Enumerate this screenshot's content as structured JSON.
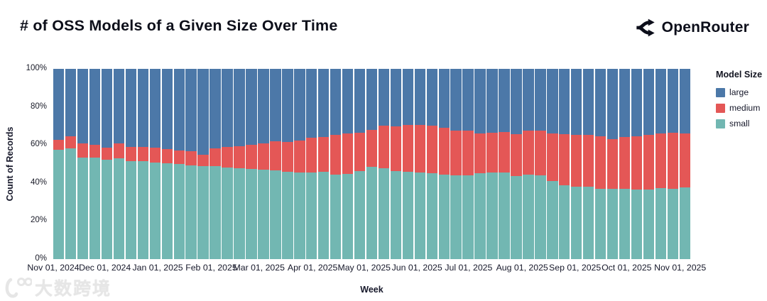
{
  "header": {
    "title": "# of OSS Models of a Given Size Over Time",
    "brand": "OpenRouter"
  },
  "watermark": {
    "text": "大数跨境"
  },
  "chart_data": {
    "type": "bar",
    "variant": "100%-stacked-weekly-bars",
    "title": "# of OSS Models of a Given Size Over Time",
    "xlabel": "Week",
    "ylabel": "Count of Records",
    "ylim": [
      0,
      100
    ],
    "y_tick_values": [
      0,
      20,
      40,
      60,
      80,
      100
    ],
    "y_tick_labels": [
      "0%",
      "20%",
      "40%",
      "60%",
      "80%",
      "100%"
    ],
    "x_tick_labels": [
      "Nov 01, 2024",
      "Dec 01, 2024",
      "Jan 01, 2025",
      "Feb 01, 2025",
      "Mar 01, 2025",
      "Apr 01, 2025",
      "May 01, 2025",
      "Jun 01, 2025",
      "Jul 01, 2025",
      "Aug 01, 2025",
      "Sep 01, 2025",
      "Oct 01, 2025",
      "Nov 01, 2025"
    ],
    "x_tick_positions_pct": [
      0,
      8.1,
      16.4,
      24.8,
      32.3,
      40.7,
      48.8,
      57.1,
      65.2,
      73.6,
      81.9,
      90.0,
      98.4
    ],
    "grid": false,
    "legend": {
      "title": "Model Size",
      "position": "right",
      "entries": [
        {
          "label": "large",
          "color": "#4c78a8"
        },
        {
          "label": "medium",
          "color": "#e45756"
        },
        {
          "label": "small",
          "color": "#72b7b2"
        }
      ]
    },
    "weeks": [
      "2024-11-01",
      "2024-11-08",
      "2024-11-15",
      "2024-11-22",
      "2024-11-29",
      "2024-12-06",
      "2024-12-13",
      "2024-12-20",
      "2024-12-27",
      "2025-01-03",
      "2025-01-10",
      "2025-01-17",
      "2025-01-24",
      "2025-01-31",
      "2025-02-07",
      "2025-02-14",
      "2025-02-21",
      "2025-02-28",
      "2025-03-07",
      "2025-03-14",
      "2025-03-21",
      "2025-03-28",
      "2025-04-04",
      "2025-04-11",
      "2025-04-18",
      "2025-04-25",
      "2025-05-02",
      "2025-05-09",
      "2025-05-16",
      "2025-05-23",
      "2025-05-30",
      "2025-06-06",
      "2025-06-13",
      "2025-06-20",
      "2025-06-27",
      "2025-07-04",
      "2025-07-11",
      "2025-07-18",
      "2025-07-25",
      "2025-08-01",
      "2025-08-08",
      "2025-08-15",
      "2025-08-22",
      "2025-08-29",
      "2025-09-05",
      "2025-09-12",
      "2025-09-19",
      "2025-09-26",
      "2025-10-03",
      "2025-10-10",
      "2025-10-17",
      "2025-10-24",
      "2025-10-31"
    ],
    "series": [
      {
        "name": "small",
        "color": "#72b7b2",
        "values": [
          57.5,
          58.3,
          53.3,
          53.4,
          52.1,
          53.1,
          51.6,
          51.4,
          50.9,
          50.4,
          50.0,
          49.4,
          48.8,
          49.0,
          48.1,
          47.8,
          47.5,
          47.2,
          46.7,
          45.9,
          45.7,
          45.4,
          45.9,
          44.5,
          44.8,
          46.3,
          48.5,
          47.8,
          46.3,
          45.9,
          45.4,
          45.1,
          44.5,
          44.2,
          43.9,
          45.1,
          45.7,
          45.4,
          43.5,
          44.5,
          43.9,
          41.0,
          38.9,
          38.1,
          38.1,
          37.1,
          36.8,
          36.8,
          36.5,
          36.7,
          37.3,
          37.1,
          37.7
        ]
      },
      {
        "name": "medium",
        "color": "#e45756",
        "values": [
          5.2,
          6.2,
          7.5,
          6.5,
          6.5,
          7.6,
          7.4,
          7.6,
          7.7,
          7.4,
          7.2,
          7.4,
          6.2,
          9.2,
          10.9,
          11.5,
          12.6,
          13.7,
          15.4,
          15.8,
          16.6,
          18.4,
          18.3,
          20.9,
          21.2,
          20.3,
          19.6,
          22.3,
          23.5,
          24.7,
          25.0,
          25.0,
          24.6,
          23.5,
          23.6,
          20.9,
          20.6,
          21.5,
          22.2,
          23.0,
          23.6,
          25.0,
          26.8,
          27.3,
          27.3,
          27.4,
          26.4,
          27.4,
          28.0,
          28.7,
          28.7,
          29.2,
          28.3
        ]
      },
      {
        "name": "large",
        "color": "#4c78a8",
        "values": [
          37.3,
          35.5,
          39.2,
          40.1,
          41.4,
          39.3,
          41.0,
          41.0,
          41.4,
          42.2,
          42.8,
          43.2,
          45.0,
          41.8,
          41.0,
          40.7,
          39.9,
          39.1,
          37.9,
          38.3,
          37.7,
          36.2,
          35.8,
          34.6,
          34.0,
          33.4,
          31.9,
          29.9,
          30.2,
          29.4,
          29.6,
          29.9,
          30.9,
          32.3,
          32.5,
          34.0,
          33.7,
          33.1,
          34.3,
          32.5,
          32.5,
          34.0,
          34.3,
          34.6,
          34.6,
          35.5,
          36.8,
          35.8,
          35.5,
          34.6,
          34.0,
          33.7,
          34.0
        ]
      }
    ]
  }
}
